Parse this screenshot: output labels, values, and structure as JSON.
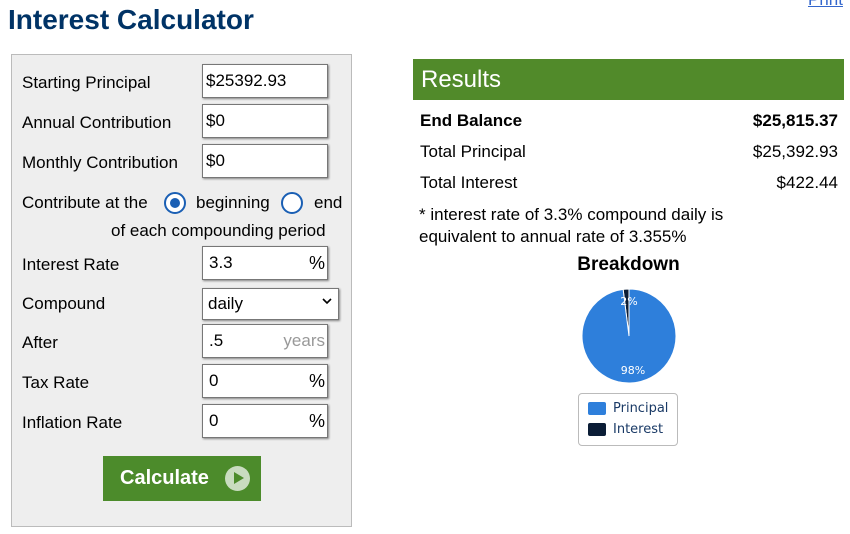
{
  "page": {
    "title": "Interest Calculator",
    "print_link": "Print"
  },
  "form": {
    "starting_principal": {
      "label": "Starting Principal",
      "value": "$25392.93"
    },
    "annual_contribution": {
      "label": "Annual Contribution",
      "value": "$0"
    },
    "monthly_contribution": {
      "label": "Monthly Contribution",
      "value": "$0"
    },
    "contribute": {
      "label": "Contribute at the",
      "option_beginning": "beginning",
      "option_end": "end",
      "suffix": "of each compounding period",
      "selected": "beginning"
    },
    "interest_rate": {
      "label": "Interest Rate",
      "value": "3.3",
      "unit": "%"
    },
    "compound": {
      "label": "Compound",
      "value": "daily"
    },
    "after": {
      "label": "After",
      "value": ".5",
      "unit": "years"
    },
    "tax_rate": {
      "label": "Tax Rate",
      "value": "0",
      "unit": "%"
    },
    "inflation_rate": {
      "label": "Inflation Rate",
      "value": "0",
      "unit": "%"
    },
    "calculate_label": "Calculate"
  },
  "results": {
    "header": "Results",
    "end_balance": {
      "label": "End Balance",
      "value": "$25,815.37"
    },
    "total_principal": {
      "label": "Total Principal",
      "value": "$25,392.93"
    },
    "total_interest": {
      "label": "Total Interest",
      "value": "$422.44"
    },
    "note": "* interest rate of 3.3% compound daily is equivalent to annual rate of 3.355%",
    "breakdown_title": "Breakdown"
  },
  "colors": {
    "brand_green": "#518a2a",
    "title_blue": "#003366",
    "principal": "#2e7fdb",
    "interest": "#0b1d36"
  },
  "chart_data": {
    "type": "pie",
    "title": "Breakdown",
    "categories": [
      "Principal",
      "Interest"
    ],
    "values": [
      98,
      2
    ],
    "slice_labels": [
      "98%",
      "2%"
    ],
    "legend": [
      "Principal",
      "Interest"
    ],
    "legend_placement": "bottom"
  }
}
